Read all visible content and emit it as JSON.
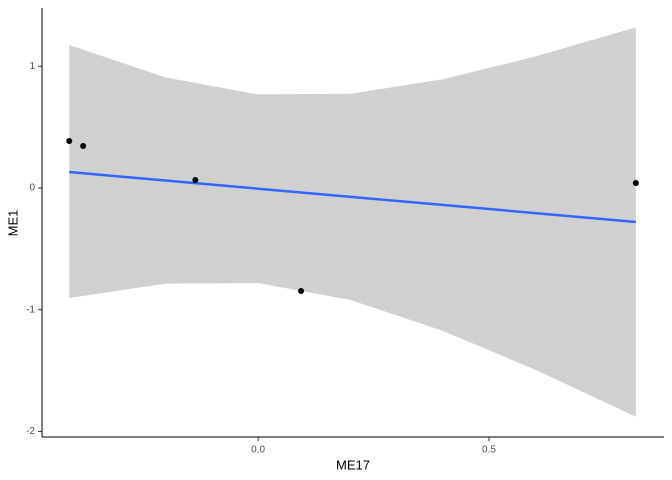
{
  "chart_data": {
    "type": "scatter",
    "x_label": "ME17",
    "y_label": "ME1",
    "xlim": [
      -0.468,
      0.879
    ],
    "ylim": [
      -2.046,
      1.479
    ],
    "xticks": [
      {
        "value": 0,
        "label": "0.0"
      },
      0.5
    ],
    "yticks": [
      -2,
      -1,
      0,
      1
    ],
    "points": {
      "color": "#000000",
      "x": [
        -0.409,
        -0.379,
        -0.136,
        0.093,
        0.818
      ],
      "y": [
        0.386,
        0.345,
        0.066,
        -0.846,
        0.041
      ]
    },
    "fit": {
      "color": "#3366ff",
      "x": [
        -0.409,
        0.818
      ],
      "y": [
        0.131,
        -0.279
      ]
    },
    "band": {
      "color": "#d0d0d0",
      "x": [
        -0.409,
        -0.2,
        0,
        0.2,
        0.4,
        0.6,
        0.818
      ],
      "upper": [
        1.175,
        0.908,
        0.769,
        0.774,
        0.894,
        1.08,
        1.32
      ],
      "lower": [
        -0.904,
        -0.786,
        -0.781,
        -0.92,
        -1.174,
        -1.492,
        -1.88
      ]
    }
  }
}
